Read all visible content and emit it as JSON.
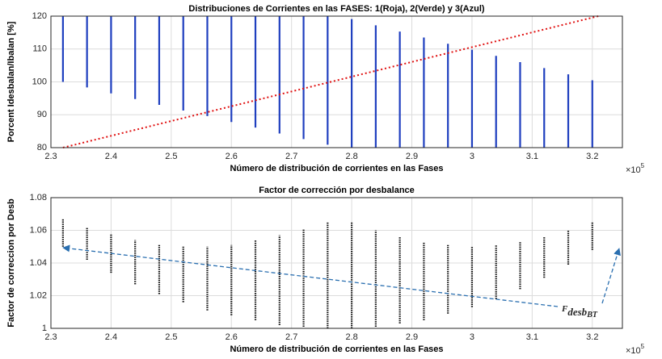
{
  "chart_data": [
    {
      "type": "vlines",
      "title": "Distribuciones de Corrientes en las FASES: 1(Roja), 2(Verde) y 3(Azul)",
      "x_label": "Número de distribución de corrientes en las Fases",
      "y_label": "Porcent Idesbalan/Ibalan [%]",
      "x_exponent_base": "×10",
      "x_exponent": "5",
      "xlim": [
        2.3,
        3.25
      ],
      "ylim": [
        80,
        120
      ],
      "xticks": [
        2.3,
        2.4,
        2.5,
        2.6,
        2.7,
        2.8,
        2.9,
        3,
        3.1,
        3.2
      ],
      "yticks": [
        80,
        90,
        100,
        110,
        120
      ],
      "grid": true,
      "series": [
        {
          "type": "vlines",
          "color": "#1f3fbf",
          "x": [
            2.32,
            2.36,
            2.4,
            2.44,
            2.48,
            2.52,
            2.56,
            2.6,
            2.64,
            2.68,
            2.72,
            2.76,
            2.8,
            2.84,
            2.88,
            2.92,
            2.96,
            3.0,
            3.04,
            3.08,
            3.12,
            3.16,
            3.2
          ],
          "low": [
            100,
            98.3,
            96.5,
            94.8,
            93.0,
            91.3,
            89.6,
            87.8,
            86.1,
            84.3,
            82.6,
            80.9,
            80,
            80,
            80,
            80,
            80,
            80,
            80,
            80,
            80,
            80,
            80
          ],
          "high": [
            120,
            120,
            120,
            120,
            120,
            120,
            120,
            120,
            120,
            120,
            120,
            120,
            119.1,
            117.2,
            115.3,
            113.5,
            111.6,
            109.8,
            107.9,
            106.0,
            104.2,
            102.3,
            100.5
          ]
        },
        {
          "type": "line",
          "color": "#e01010",
          "x": [
            2.32,
            3.21
          ],
          "values": [
            80,
            120
          ]
        }
      ]
    },
    {
      "type": "vlines",
      "title": "Factor de corrección por desbalance",
      "x_label": "Número de distribución de corrientes en las Fases",
      "y_label": "Factor de correccion por Desb",
      "x_exponent_base": "×10",
      "x_exponent": "5",
      "xlim": [
        2.3,
        3.25
      ],
      "ylim": [
        1,
        1.08
      ],
      "xticks": [
        2.3,
        2.4,
        2.5,
        2.6,
        2.7,
        2.8,
        2.9,
        3,
        3.1,
        3.2
      ],
      "yticks": [
        1,
        1.02,
        1.04,
        1.06,
        1.08
      ],
      "grid": true,
      "annotation": {
        "text": "F",
        "sub": "desb",
        "subsub": "BT"
      },
      "series": [
        {
          "type": "vlines",
          "color": "#111111",
          "x": [
            2.32,
            2.36,
            2.4,
            2.44,
            2.48,
            2.52,
            2.56,
            2.6,
            2.64,
            2.68,
            2.72,
            2.76,
            2.8,
            2.84,
            2.88,
            2.92,
            2.96,
            3.0,
            3.04,
            3.08,
            3.12,
            3.16,
            3.2
          ],
          "low": [
            1.05,
            1.042,
            1.034,
            1.027,
            1.021,
            1.016,
            1.011,
            1.008,
            1.005,
            1.002,
            1.001,
            1.0,
            1.0,
            1.001,
            1.003,
            1.005,
            1.009,
            1.013,
            1.018,
            1.024,
            1.031,
            1.039,
            1.048
          ],
          "high": [
            1.067,
            1.062,
            1.058,
            1.054,
            1.051,
            1.05,
            1.05,
            1.051,
            1.054,
            1.057,
            1.061,
            1.065,
            1.065,
            1.06,
            1.056,
            1.053,
            1.051,
            1.05,
            1.051,
            1.053,
            1.056,
            1.06,
            1.065
          ]
        }
      ]
    }
  ]
}
